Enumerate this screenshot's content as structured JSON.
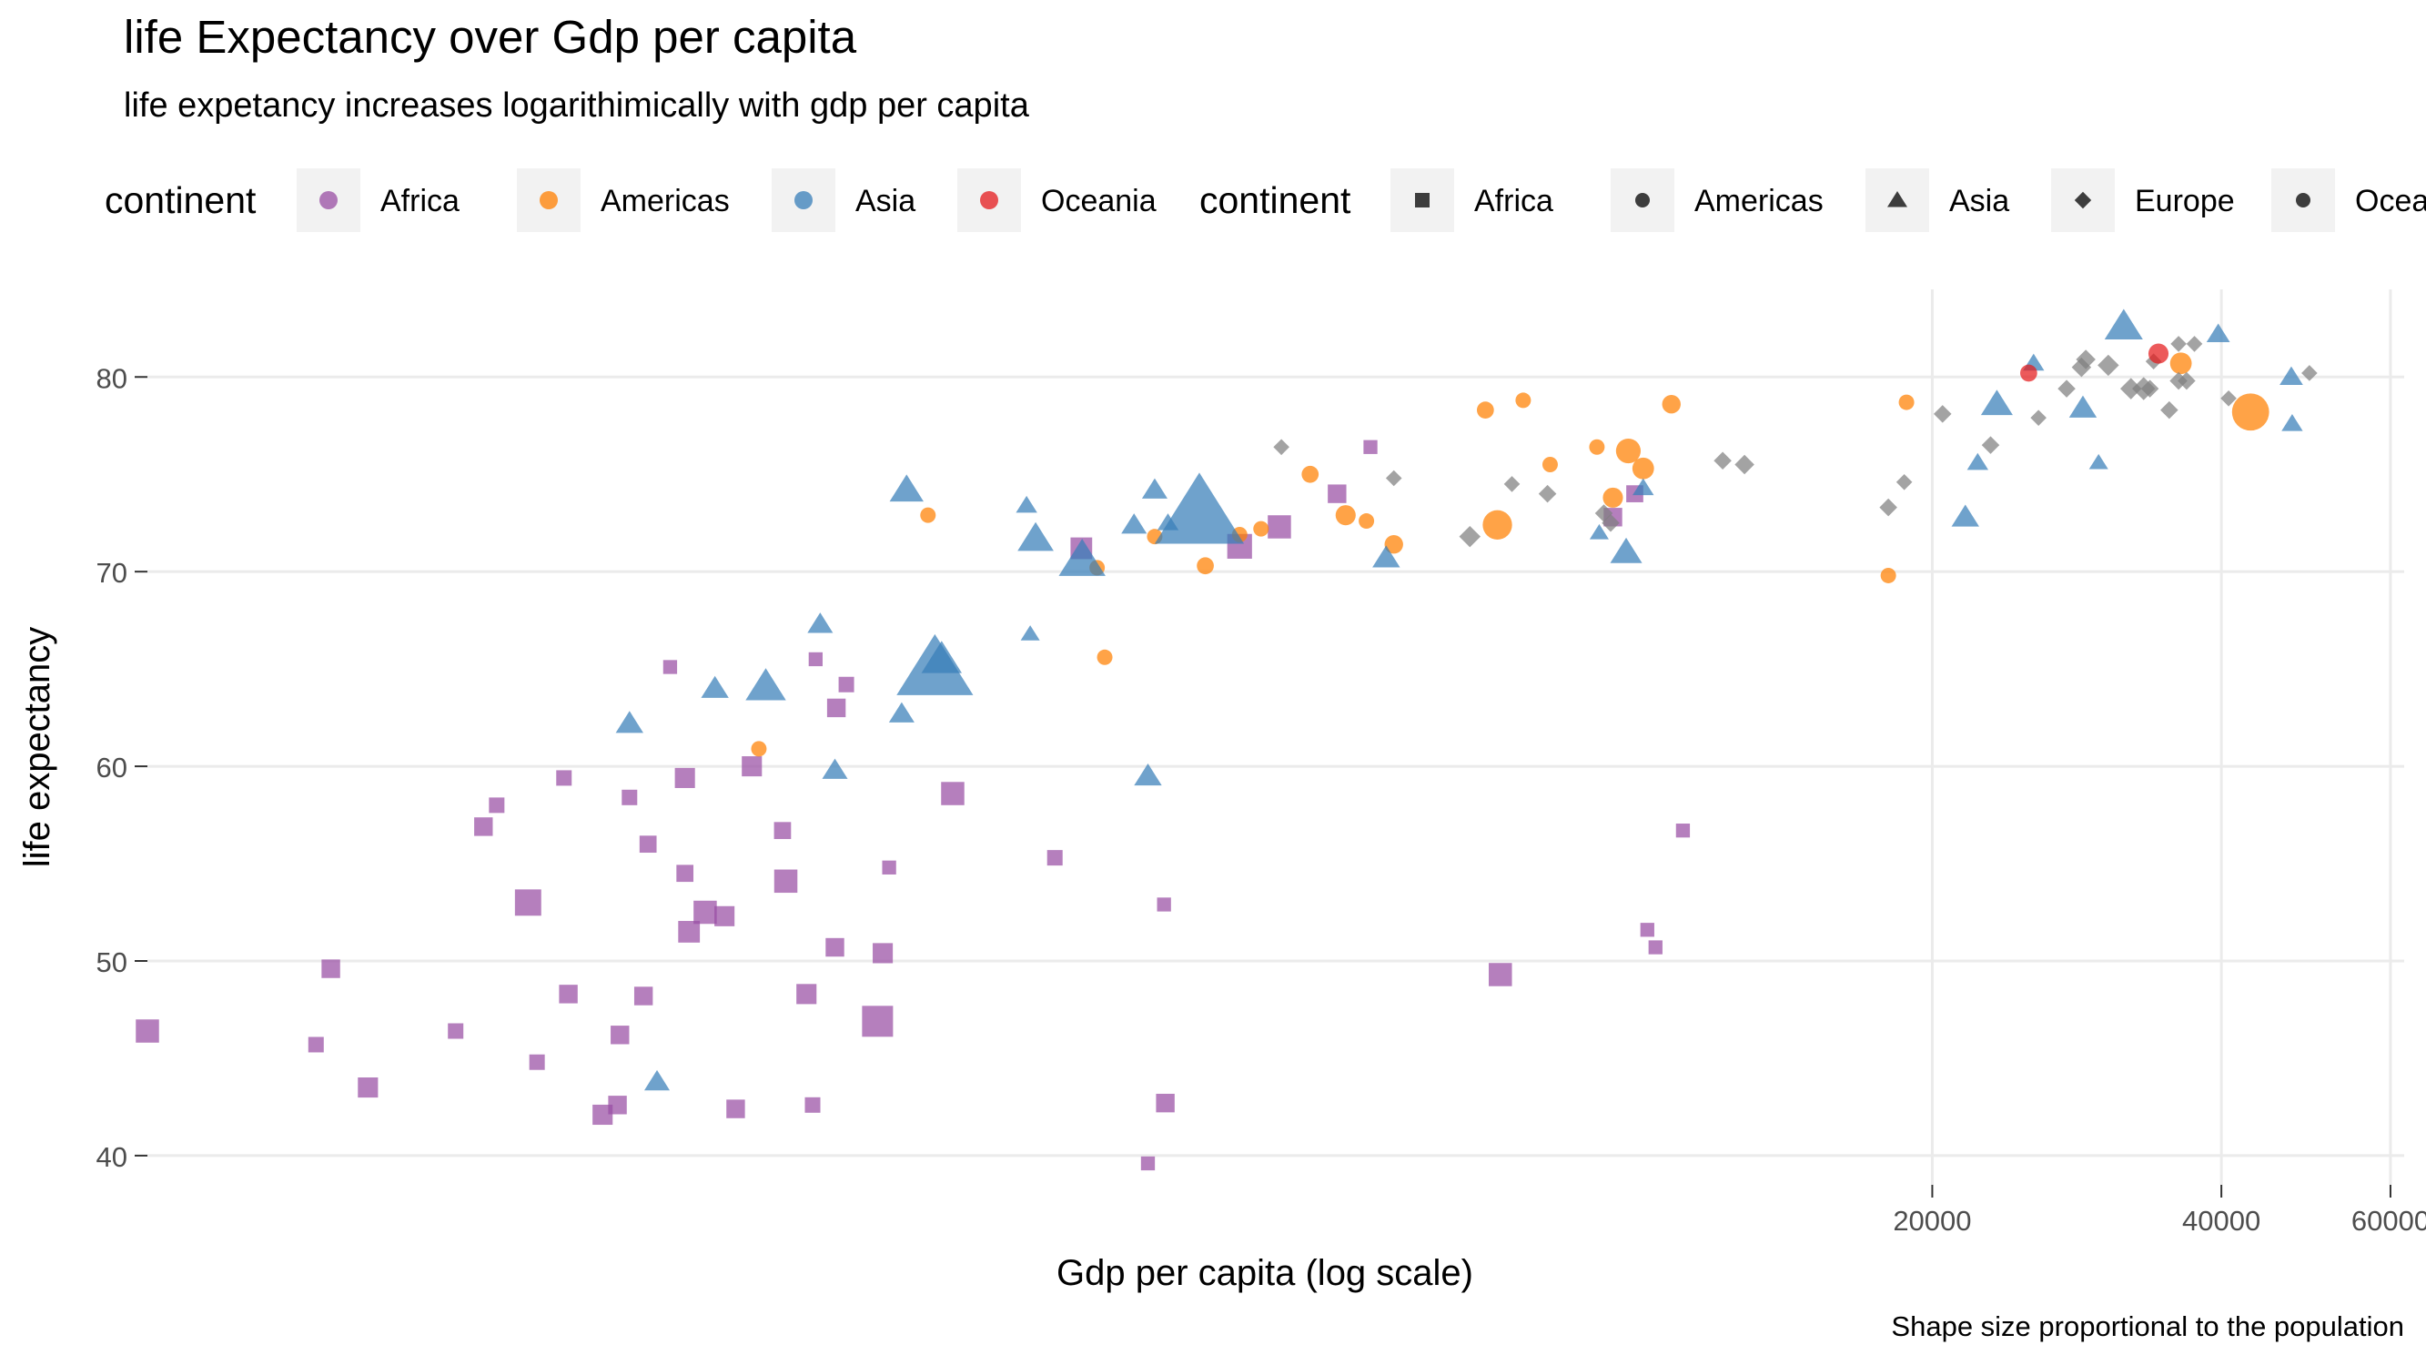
{
  "chart_data": {
    "type": "scatter",
    "title": "life Expectancy over Gdp per capita",
    "subtitle": "life expetancy increases logarithimically with gdp per capita",
    "xlabel": "Gdp per capita (log scale)",
    "ylabel": "life expectancy",
    "caption": "Shape size proportional to the population",
    "x_scale": "log10",
    "xlim": [
      277,
      62000
    ],
    "ylim": [
      38.5,
      84.5
    ],
    "x_ticks": [
      20000,
      40000,
      60000
    ],
    "x_tick_labels": [
      "20000",
      "40000",
      "60000"
    ],
    "y_ticks": [
      40,
      50,
      60,
      70,
      80
    ],
    "y_tick_labels": [
      "40",
      "50",
      "60",
      "70",
      "80"
    ],
    "grid": true,
    "legend_position": "top",
    "legend_color": {
      "title": "continent",
      "entries": [
        {
          "label": "Africa",
          "color": "#984ea3"
        },
        {
          "label": "Americas",
          "color": "#ff7f00"
        },
        {
          "label": "Asia",
          "color": "#377eb8"
        },
        {
          "label": "Oceania",
          "color": "#e41a1c"
        }
      ]
    },
    "legend_shape": {
      "title": "continent",
      "entries": [
        {
          "label": "Africa",
          "shape": "square"
        },
        {
          "label": "Americas",
          "shape": "circle"
        },
        {
          "label": "Asia",
          "shape": "triangle"
        },
        {
          "label": "Europe",
          "shape": "diamond"
        },
        {
          "label": "Oceania",
          "shape": "circle"
        }
      ]
    },
    "series": [
      {
        "name": "Africa",
        "color": "#984ea3",
        "shape": "square",
        "points": [
          {
            "x": 277,
            "y": 46.4,
            "s": 1.5
          },
          {
            "x": 415,
            "y": 45.7,
            "s": 1.0
          },
          {
            "x": 430,
            "y": 49.6,
            "s": 1.2
          },
          {
            "x": 470,
            "y": 43.5,
            "s": 1.3
          },
          {
            "x": 580,
            "y": 46.4,
            "s": 1.0
          },
          {
            "x": 620,
            "y": 56.9,
            "s": 1.2
          },
          {
            "x": 640,
            "y": 58.0,
            "s": 1.0
          },
          {
            "x": 690,
            "y": 53.0,
            "s": 1.7
          },
          {
            "x": 705,
            "y": 44.8,
            "s": 1.0
          },
          {
            "x": 752,
            "y": 59.4,
            "s": 1.0
          },
          {
            "x": 760,
            "y": 48.3,
            "s": 1.2
          },
          {
            "x": 825,
            "y": 42.1,
            "s": 1.3
          },
          {
            "x": 855,
            "y": 42.6,
            "s": 1.2
          },
          {
            "x": 860,
            "y": 46.2,
            "s": 1.2
          },
          {
            "x": 880,
            "y": 58.4,
            "s": 1.0
          },
          {
            "x": 910,
            "y": 48.2,
            "s": 1.2
          },
          {
            "x": 920,
            "y": 56.0,
            "s": 1.1
          },
          {
            "x": 970,
            "y": 65.1,
            "s": 0.9
          },
          {
            "x": 1005,
            "y": 59.4,
            "s": 1.3
          },
          {
            "x": 1005,
            "y": 54.5,
            "s": 1.1
          },
          {
            "x": 1015,
            "y": 51.5,
            "s": 1.4
          },
          {
            "x": 1055,
            "y": 52.5,
            "s": 1.5
          },
          {
            "x": 1105,
            "y": 52.3,
            "s": 1.3
          },
          {
            "x": 1135,
            "y": 42.4,
            "s": 1.2
          },
          {
            "x": 1180,
            "y": 60.0,
            "s": 1.3
          },
          {
            "x": 1270,
            "y": 56.7,
            "s": 1.1
          },
          {
            "x": 1280,
            "y": 54.1,
            "s": 1.5
          },
          {
            "x": 1345,
            "y": 48.3,
            "s": 1.3
          },
          {
            "x": 1365,
            "y": 42.6,
            "s": 1.0
          },
          {
            "x": 1375,
            "y": 65.5,
            "s": 0.9
          },
          {
            "x": 1440,
            "y": 50.7,
            "s": 1.2
          },
          {
            "x": 1445,
            "y": 63.0,
            "s": 1.2
          },
          {
            "x": 1480,
            "y": 64.2,
            "s": 1.0
          },
          {
            "x": 1595,
            "y": 46.9,
            "s": 2.0
          },
          {
            "x": 1615,
            "y": 50.4,
            "s": 1.3
          },
          {
            "x": 1640,
            "y": 54.8,
            "s": 0.9
          },
          {
            "x": 1910,
            "y": 58.6,
            "s": 1.5
          },
          {
            "x": 2440,
            "y": 55.3,
            "s": 1.0
          },
          {
            "x": 2600,
            "y": 71.2,
            "s": 1.4
          },
          {
            "x": 3050,
            "y": 39.6,
            "s": 0.9
          },
          {
            "x": 3170,
            "y": 52.9,
            "s": 0.9
          },
          {
            "x": 3180,
            "y": 42.7,
            "s": 1.2
          },
          {
            "x": 3800,
            "y": 71.3,
            "s": 1.6
          },
          {
            "x": 4180,
            "y": 72.3,
            "s": 1.5
          },
          {
            "x": 4800,
            "y": 74.0,
            "s": 1.2
          },
          {
            "x": 5200,
            "y": 76.4,
            "s": 0.9
          },
          {
            "x": 7100,
            "y": 49.3,
            "s": 1.5
          },
          {
            "x": 9300,
            "y": 72.8,
            "s": 1.2
          },
          {
            "x": 9800,
            "y": 74.0,
            "s": 1.1
          },
          {
            "x": 10100,
            "y": 51.6,
            "s": 0.9
          },
          {
            "x": 10300,
            "y": 50.7,
            "s": 0.9
          },
          {
            "x": 11000,
            "y": 56.7,
            "s": 0.9
          }
        ]
      },
      {
        "name": "Americas",
        "color": "#ff7f00",
        "shape": "circle",
        "points": [
          {
            "x": 1200,
            "y": 60.9,
            "s": 1.0
          },
          {
            "x": 1800,
            "y": 72.9,
            "s": 1.0
          },
          {
            "x": 2700,
            "y": 70.2,
            "s": 1.0
          },
          {
            "x": 2750,
            "y": 65.6,
            "s": 1.0
          },
          {
            "x": 3100,
            "y": 71.8,
            "s": 1.0
          },
          {
            "x": 3500,
            "y": 70.3,
            "s": 1.1
          },
          {
            "x": 3800,
            "y": 71.9,
            "s": 1.0
          },
          {
            "x": 4000,
            "y": 72.2,
            "s": 1.0
          },
          {
            "x": 4500,
            "y": 75.0,
            "s": 1.1
          },
          {
            "x": 4900,
            "y": 72.9,
            "s": 1.3
          },
          {
            "x": 5150,
            "y": 72.6,
            "s": 1.0
          },
          {
            "x": 5500,
            "y": 71.4,
            "s": 1.2
          },
          {
            "x": 6850,
            "y": 78.3,
            "s": 1.1
          },
          {
            "x": 7050,
            "y": 72.4,
            "s": 1.9
          },
          {
            "x": 7500,
            "y": 78.8,
            "s": 1.0
          },
          {
            "x": 8000,
            "y": 75.5,
            "s": 1.0
          },
          {
            "x": 8950,
            "y": 76.4,
            "s": 1.0
          },
          {
            "x": 9300,
            "y": 73.8,
            "s": 1.3
          },
          {
            "x": 9650,
            "y": 76.2,
            "s": 1.6
          },
          {
            "x": 10000,
            "y": 75.3,
            "s": 1.4
          },
          {
            "x": 10700,
            "y": 78.6,
            "s": 1.2
          },
          {
            "x": 18000,
            "y": 69.8,
            "s": 1.0
          },
          {
            "x": 18800,
            "y": 78.7,
            "s": 1.0
          },
          {
            "x": 36300,
            "y": 80.7,
            "s": 1.4
          },
          {
            "x": 42900,
            "y": 78.2,
            "s": 2.4
          }
        ]
      },
      {
        "name": "Asia",
        "color": "#377eb8",
        "shape": "triangle",
        "points": [
          {
            "x": 880,
            "y": 62.2,
            "s": 1.3
          },
          {
            "x": 940,
            "y": 43.8,
            "s": 1.2
          },
          {
            "x": 1080,
            "y": 64.0,
            "s": 1.3
          },
          {
            "x": 1220,
            "y": 64.1,
            "s": 1.9
          },
          {
            "x": 1390,
            "y": 67.3,
            "s": 1.2
          },
          {
            "x": 1440,
            "y": 59.8,
            "s": 1.2
          },
          {
            "x": 1690,
            "y": 62.7,
            "s": 1.2
          },
          {
            "x": 1710,
            "y": 74.2,
            "s": 1.6
          },
          {
            "x": 1830,
            "y": 65.0,
            "s": 3.6
          },
          {
            "x": 1860,
            "y": 65.5,
            "s": 1.9
          },
          {
            "x": 2280,
            "y": 73.4,
            "s": 1.0
          },
          {
            "x": 2300,
            "y": 66.8,
            "s": 0.9
          },
          {
            "x": 2330,
            "y": 71.7,
            "s": 1.7
          },
          {
            "x": 2605,
            "y": 70.6,
            "s": 2.2
          },
          {
            "x": 2950,
            "y": 72.4,
            "s": 1.2
          },
          {
            "x": 3050,
            "y": 59.5,
            "s": 1.3
          },
          {
            "x": 3100,
            "y": 74.2,
            "s": 1.2
          },
          {
            "x": 3200,
            "y": 72.5,
            "s": 1.0
          },
          {
            "x": 3450,
            "y": 73.0,
            "s": 4.2
          },
          {
            "x": 5400,
            "y": 70.7,
            "s": 1.3
          },
          {
            "x": 9000,
            "y": 72.0,
            "s": 0.9
          },
          {
            "x": 9600,
            "y": 71.0,
            "s": 1.5
          },
          {
            "x": 10000,
            "y": 74.3,
            "s": 1.0
          },
          {
            "x": 21650,
            "y": 72.8,
            "s": 1.3
          },
          {
            "x": 22300,
            "y": 75.6,
            "s": 1.0
          },
          {
            "x": 23350,
            "y": 78.6,
            "s": 1.5
          },
          {
            "x": 25500,
            "y": 80.7,
            "s": 1.0
          },
          {
            "x": 28700,
            "y": 78.4,
            "s": 1.3
          },
          {
            "x": 29800,
            "y": 75.6,
            "s": 0.9
          },
          {
            "x": 31650,
            "y": 82.6,
            "s": 1.8
          },
          {
            "x": 39700,
            "y": 82.2,
            "s": 1.1
          },
          {
            "x": 47300,
            "y": 80.0,
            "s": 1.1
          },
          {
            "x": 47400,
            "y": 77.6,
            "s": 1.0
          }
        ]
      },
      {
        "name": "Europe",
        "color": "#808080",
        "shape": "diamond",
        "points": [
          {
            "x": 4200,
            "y": 76.4,
            "s": 0.9
          },
          {
            "x": 5500,
            "y": 74.8,
            "s": 0.9
          },
          {
            "x": 6600,
            "y": 71.8,
            "s": 1.2
          },
          {
            "x": 7300,
            "y": 74.5,
            "s": 0.9
          },
          {
            "x": 7950,
            "y": 74.0,
            "s": 1.0
          },
          {
            "x": 9100,
            "y": 73.0,
            "s": 1.0
          },
          {
            "x": 9250,
            "y": 72.5,
            "s": 1.0
          },
          {
            "x": 12100,
            "y": 75.7,
            "s": 1.0
          },
          {
            "x": 12750,
            "y": 75.5,
            "s": 1.1
          },
          {
            "x": 18000,
            "y": 73.3,
            "s": 1.0
          },
          {
            "x": 18700,
            "y": 74.6,
            "s": 0.9
          },
          {
            "x": 20500,
            "y": 78.1,
            "s": 1.0
          },
          {
            "x": 23000,
            "y": 76.5,
            "s": 1.0
          },
          {
            "x": 25800,
            "y": 77.9,
            "s": 0.9
          },
          {
            "x": 27600,
            "y": 79.4,
            "s": 1.0
          },
          {
            "x": 28600,
            "y": 80.5,
            "s": 1.1
          },
          {
            "x": 28900,
            "y": 80.9,
            "s": 1.1
          },
          {
            "x": 30500,
            "y": 80.6,
            "s": 1.2
          },
          {
            "x": 32200,
            "y": 79.4,
            "s": 1.2
          },
          {
            "x": 33200,
            "y": 79.4,
            "s": 1.3
          },
          {
            "x": 33700,
            "y": 79.4,
            "s": 1.0
          },
          {
            "x": 34000,
            "y": 80.8,
            "s": 0.9
          },
          {
            "x": 35300,
            "y": 78.3,
            "s": 1.0
          },
          {
            "x": 36100,
            "y": 81.7,
            "s": 0.9
          },
          {
            "x": 36100,
            "y": 79.8,
            "s": 1.0
          },
          {
            "x": 36800,
            "y": 79.8,
            "s": 1.0
          },
          {
            "x": 37500,
            "y": 81.7,
            "s": 0.9
          },
          {
            "x": 40700,
            "y": 78.9,
            "s": 0.9
          },
          {
            "x": 49400,
            "y": 80.2,
            "s": 0.9
          }
        ]
      },
      {
        "name": "Oceania",
        "color": "#e41a1c",
        "shape": "circle",
        "points": [
          {
            "x": 25200,
            "y": 80.2,
            "s": 1.1
          },
          {
            "x": 34400,
            "y": 81.2,
            "s": 1.3
          }
        ]
      }
    ]
  }
}
